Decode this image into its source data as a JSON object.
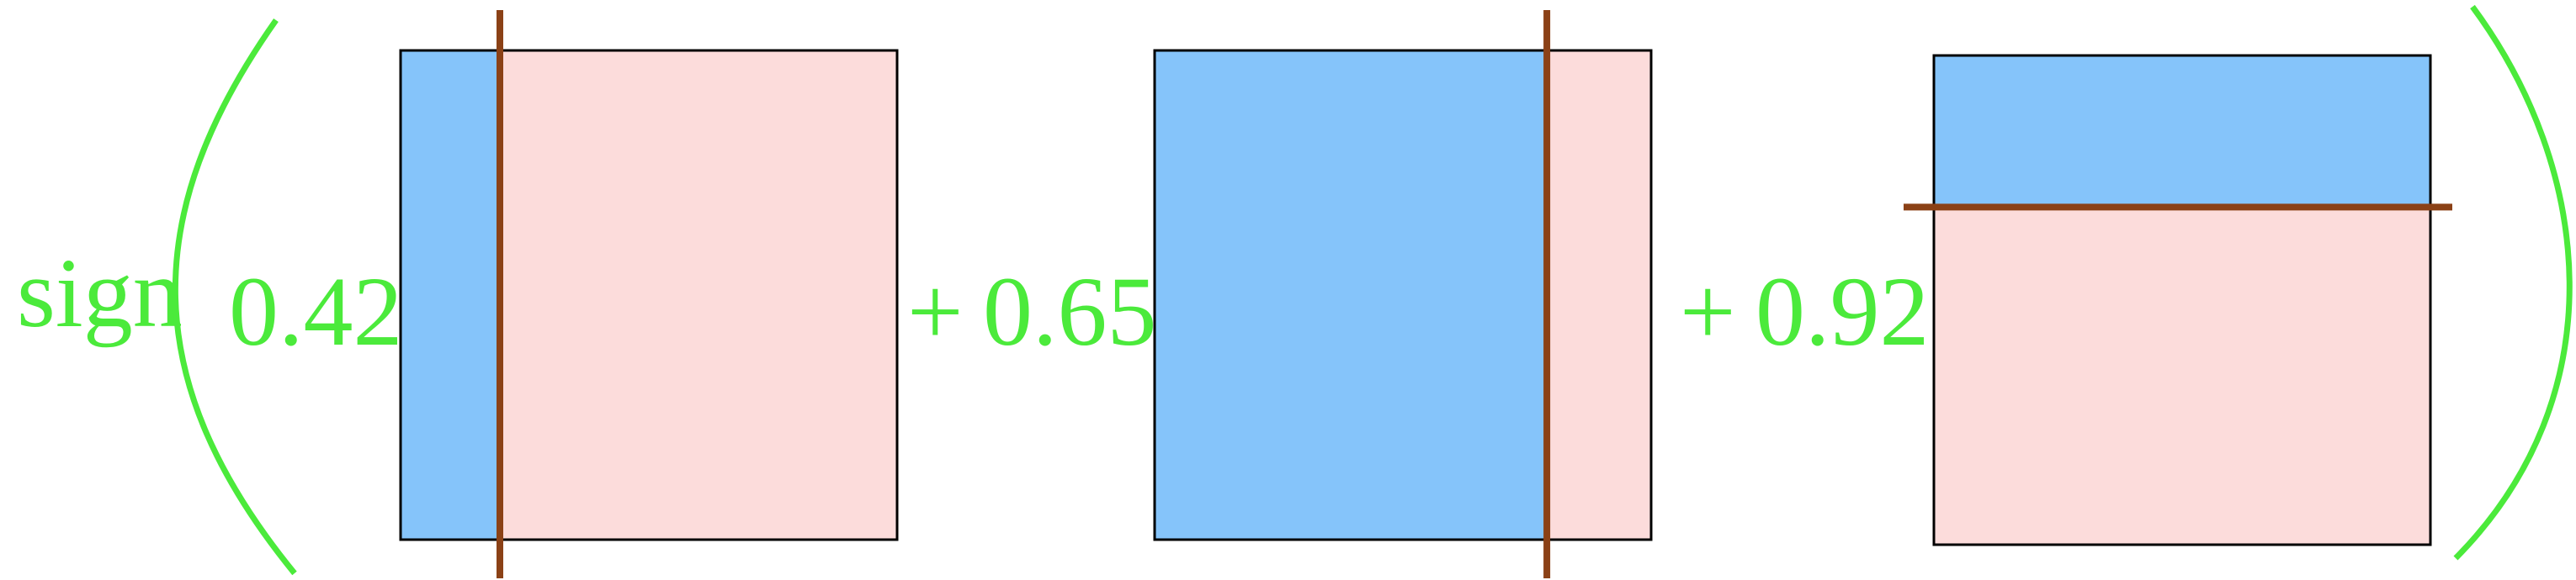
{
  "expression": {
    "function_label": "sign",
    "terms": [
      {
        "prefix": "",
        "coefficient": "0.42",
        "split": "vertical",
        "blue_fraction": 0.2,
        "blue_side": "left"
      },
      {
        "prefix": "+",
        "coefficient": "0.65",
        "split": "vertical",
        "blue_fraction": 0.79,
        "blue_side": "left"
      },
      {
        "prefix": "+",
        "coefficient": "0.92",
        "split": "horizontal",
        "blue_fraction": 0.31,
        "blue_side": "top"
      }
    ]
  },
  "colors": {
    "text": "#4bea3b",
    "paren": "#4bea3b",
    "blue_region": "#85c4fa",
    "pink_region": "#fcdcdb",
    "box_border": "#000000",
    "split_line": "#8b4116"
  }
}
